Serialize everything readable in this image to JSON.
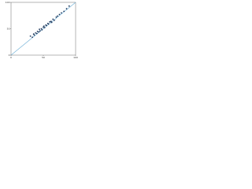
{
  "chart_data": {
    "type": "scatter",
    "x": [
      30,
      33,
      35,
      36,
      38,
      40,
      41,
      43,
      44,
      45,
      47,
      48,
      50,
      51,
      52,
      54,
      55,
      57,
      58,
      60,
      62,
      63,
      65,
      67,
      70,
      72,
      75,
      78,
      82,
      86,
      90
    ],
    "values": [
      36,
      34,
      40,
      38,
      42,
      41,
      45,
      44,
      49,
      46,
      50,
      48,
      53,
      55,
      52,
      57,
      56,
      60,
      59,
      63,
      64,
      62,
      68,
      66,
      72,
      74,
      77,
      80,
      83,
      88,
      93
    ],
    "color": "#1f3a5f",
    "reference_color": "#6baed6",
    "xlim": [
      0,
      100
    ],
    "ylim": [
      0,
      100
    ],
    "xticks": [
      0,
      50,
      100
    ],
    "yticks": [
      0,
      50,
      100
    ]
  }
}
